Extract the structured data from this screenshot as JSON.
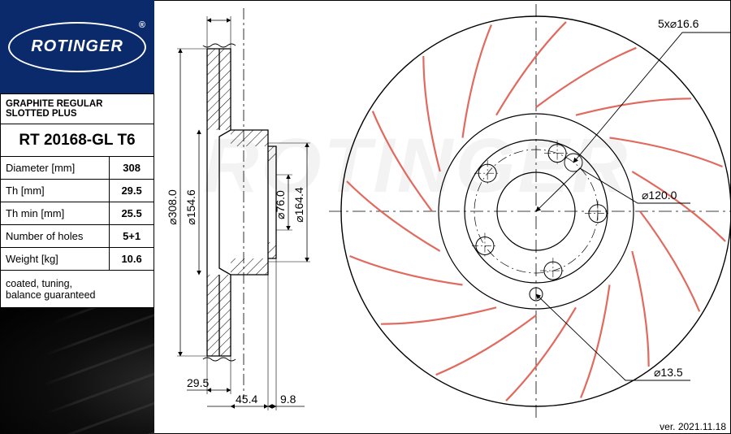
{
  "brand": "ROTINGER",
  "registered": "®",
  "product_title": "GRAPHITE REGULAR SLOTTED PLUS",
  "part_number": "RT 20168-GL T6",
  "specs": [
    {
      "label": "Diameter [mm]",
      "value": "308"
    },
    {
      "label": "Th [mm]",
      "value": "29.5"
    },
    {
      "label": "Th min [mm]",
      "value": "25.5"
    },
    {
      "label": "Number of holes",
      "value": "5+1"
    },
    {
      "label": "Weight [kg]",
      "value": "10.6"
    }
  ],
  "note": "coated, tuning,\nbalance guaranteed",
  "version": "ver. 2021.11.18",
  "watermark": "ROTINGER",
  "colors": {
    "brand_bg": "#0a2a6b",
    "slot_stroke": "#e1695e",
    "line": "#000000",
    "centerline": "#000000"
  },
  "side_view": {
    "outer_d_label": "⌀308.0",
    "hub_d_label": "⌀154.6",
    "bore_d_label": "⌀76.0",
    "pcd_label": "⌀164.4",
    "thickness": "29.5",
    "hat_depth": "45.4",
    "flange": "9.8"
  },
  "front_view": {
    "outer_d": 240,
    "hub_d": 88,
    "bore_d": 48,
    "pcd": 76,
    "slot_count": 16,
    "bolt_count": 5,
    "bolt_callout": "5x⌀16.6",
    "pcd_callout": "⌀120.0",
    "drain_callout": "⌀13.5"
  }
}
